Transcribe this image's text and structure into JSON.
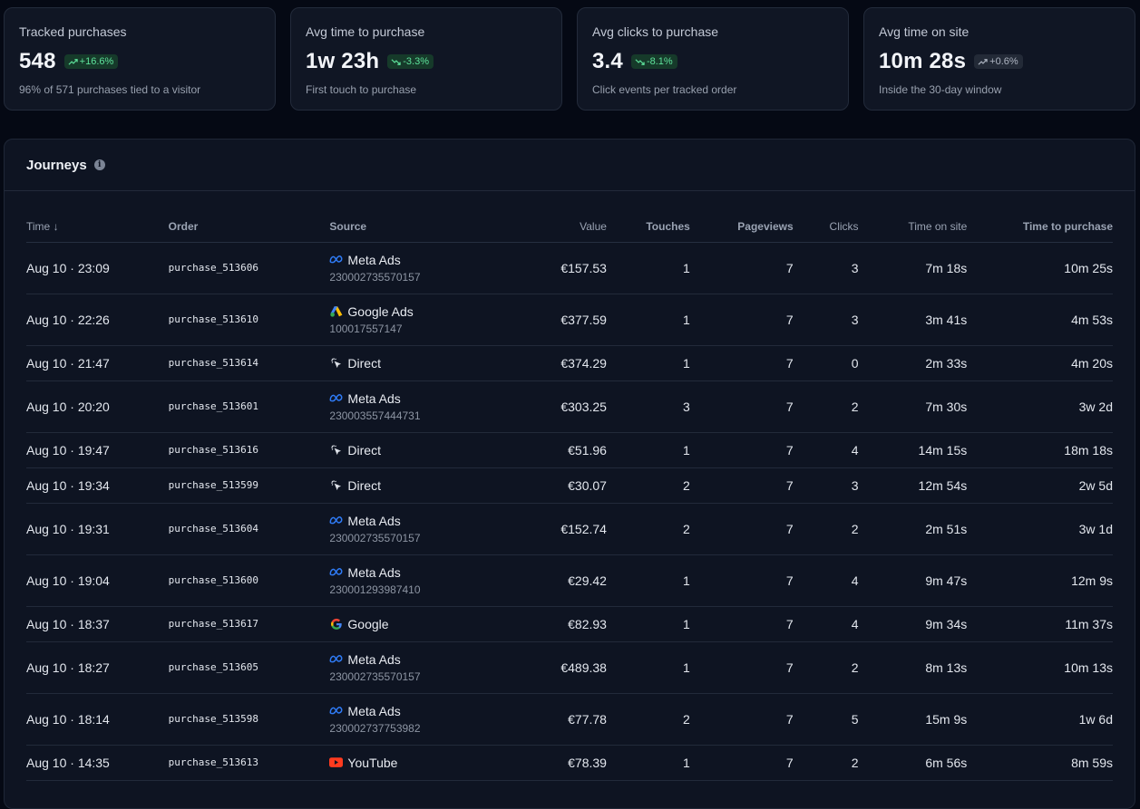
{
  "stats": [
    {
      "label": "Tracked purchases",
      "value": "548",
      "badge": "+16.6%",
      "trend": "up",
      "sub": "96% of 571 purchases tied to a visitor"
    },
    {
      "label": "Avg time to purchase",
      "value": "1w 23h",
      "badge": "-3.3%",
      "trend": "down",
      "sub": "First touch to purchase"
    },
    {
      "label": "Avg clicks to purchase",
      "value": "3.4",
      "badge": "-8.1%",
      "trend": "down",
      "sub": "Click events per tracked order"
    },
    {
      "label": "Avg time on site",
      "value": "10m 28s",
      "badge": "+0.6%",
      "trend": "neutral",
      "sub": "Inside the 30-day window"
    }
  ],
  "journeys": {
    "title": "Journeys",
    "columns": {
      "time": "Time",
      "order": "Order",
      "source": "Source",
      "value": "Value",
      "touches": "Touches",
      "pageviews": "Pageviews",
      "clicks": "Clicks",
      "time_on_site": "Time on site",
      "time_to_purchase": "Time to purchase"
    },
    "rows": [
      {
        "time": "Aug 10 · 23:09",
        "order": "purchase_513606",
        "source": "Meta Ads",
        "source_icon": "meta-icon",
        "source_id": "230002735570157",
        "value": "€157.53",
        "touches": "1",
        "pageviews": "7",
        "clicks": "3",
        "time_on_site": "7m 18s",
        "time_to_purchase": "10m 25s"
      },
      {
        "time": "Aug 10 · 22:26",
        "order": "purchase_513610",
        "source": "Google Ads",
        "source_icon": "google-ads-icon",
        "source_id": "100017557147",
        "value": "€377.59",
        "touches": "1",
        "pageviews": "7",
        "clicks": "3",
        "time_on_site": "3m 41s",
        "time_to_purchase": "4m 53s"
      },
      {
        "time": "Aug 10 · 21:47",
        "order": "purchase_513614",
        "source": "Direct",
        "source_icon": "cursor-click-icon",
        "source_id": "",
        "value": "€374.29",
        "touches": "1",
        "pageviews": "7",
        "clicks": "0",
        "time_on_site": "2m 33s",
        "time_to_purchase": "4m 20s"
      },
      {
        "time": "Aug 10 · 20:20",
        "order": "purchase_513601",
        "source": "Meta Ads",
        "source_icon": "meta-icon",
        "source_id": "230003557444731",
        "value": "€303.25",
        "touches": "3",
        "pageviews": "7",
        "clicks": "2",
        "time_on_site": "7m 30s",
        "time_to_purchase": "3w 2d"
      },
      {
        "time": "Aug 10 · 19:47",
        "order": "purchase_513616",
        "source": "Direct",
        "source_icon": "cursor-click-icon",
        "source_id": "",
        "value": "€51.96",
        "touches": "1",
        "pageviews": "7",
        "clicks": "4",
        "time_on_site": "14m 15s",
        "time_to_purchase": "18m 18s"
      },
      {
        "time": "Aug 10 · 19:34",
        "order": "purchase_513599",
        "source": "Direct",
        "source_icon": "cursor-click-icon",
        "source_id": "",
        "value": "€30.07",
        "touches": "2",
        "pageviews": "7",
        "clicks": "3",
        "time_on_site": "12m 54s",
        "time_to_purchase": "2w 5d"
      },
      {
        "time": "Aug 10 · 19:31",
        "order": "purchase_513604",
        "source": "Meta Ads",
        "source_icon": "meta-icon",
        "source_id": "230002735570157",
        "value": "€152.74",
        "touches": "2",
        "pageviews": "7",
        "clicks": "2",
        "time_on_site": "2m 51s",
        "time_to_purchase": "3w 1d"
      },
      {
        "time": "Aug 10 · 19:04",
        "order": "purchase_513600",
        "source": "Meta Ads",
        "source_icon": "meta-icon",
        "source_id": "230001293987410",
        "value": "€29.42",
        "touches": "1",
        "pageviews": "7",
        "clicks": "4",
        "time_on_site": "9m 47s",
        "time_to_purchase": "12m 9s"
      },
      {
        "time": "Aug 10 · 18:37",
        "order": "purchase_513617",
        "source": "Google",
        "source_icon": "google-icon",
        "source_id": "",
        "value": "€82.93",
        "touches": "1",
        "pageviews": "7",
        "clicks": "4",
        "time_on_site": "9m 34s",
        "time_to_purchase": "11m 37s"
      },
      {
        "time": "Aug 10 · 18:27",
        "order": "purchase_513605",
        "source": "Meta Ads",
        "source_icon": "meta-icon",
        "source_id": "230002735570157",
        "value": "€489.38",
        "touches": "1",
        "pageviews": "7",
        "clicks": "2",
        "time_on_site": "8m 13s",
        "time_to_purchase": "10m 13s"
      },
      {
        "time": "Aug 10 · 18:14",
        "order": "purchase_513598",
        "source": "Meta Ads",
        "source_icon": "meta-icon",
        "source_id": "230002737753982",
        "value": "€77.78",
        "touches": "2",
        "pageviews": "7",
        "clicks": "5",
        "time_on_site": "15m 9s",
        "time_to_purchase": "1w 6d"
      },
      {
        "time": "Aug 10 · 14:35",
        "order": "purchase_513613",
        "source": "YouTube",
        "source_icon": "youtube-icon",
        "source_id": "",
        "value": "€78.39",
        "touches": "1",
        "pageviews": "7",
        "clicks": "2",
        "time_on_site": "6m 56s",
        "time_to_purchase": "8m 59s"
      }
    ]
  },
  "colors": {
    "background": "#050914",
    "card": "#101624",
    "positive_badge_text": "#5ee29b",
    "meta_blue": "#2f7bf6",
    "youtube_red": "#ff3b1f"
  }
}
